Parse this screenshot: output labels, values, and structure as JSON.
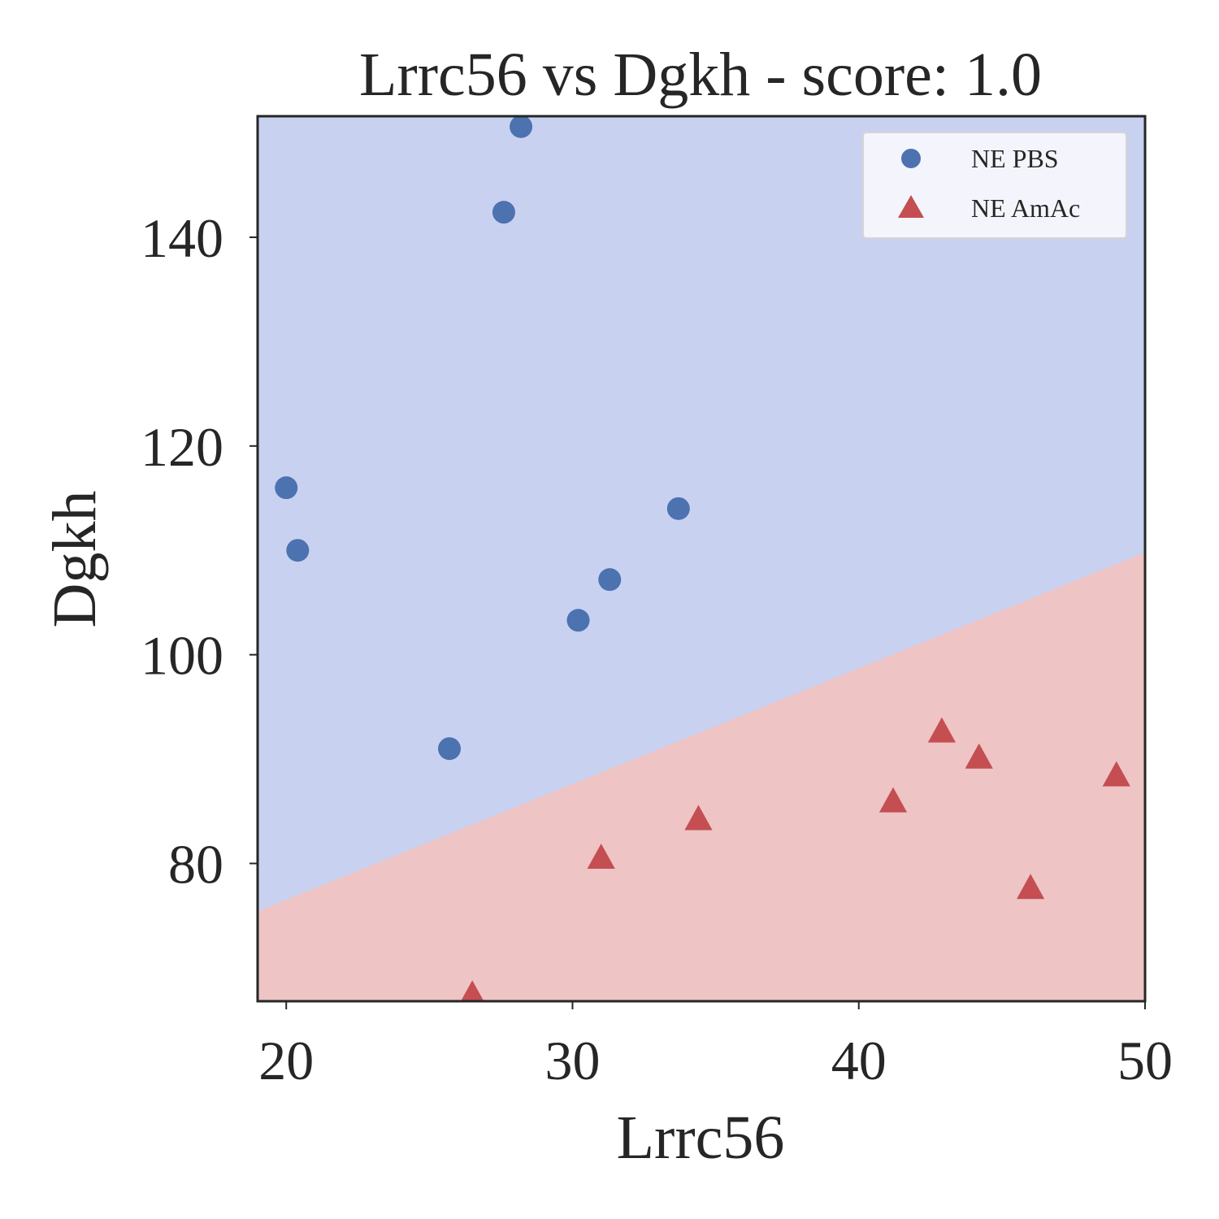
{
  "chart_data": {
    "type": "scatter",
    "title": "Lrrc56 vs Dgkh - score: 1.0",
    "xlabel": "Lrrc56",
    "ylabel": "Dgkh",
    "xlim": [
      19.0,
      50.0
    ],
    "ylim": [
      66.8,
      151.6
    ],
    "xticks": [
      20,
      30,
      40,
      50
    ],
    "xtick_labels": [
      "20",
      "30",
      "40",
      "50"
    ],
    "yticks": [
      80,
      100,
      120,
      140
    ],
    "ytick_labels": [
      "80",
      "100",
      "120",
      "140"
    ],
    "grid": false,
    "legend_position": "top-right",
    "decision_boundary": {
      "x": [
        19.0,
        50.0
      ],
      "y": [
        75.4,
        109.8
      ]
    },
    "regions": {
      "above_color": "#c9d1f1",
      "below_color": "#eec4c4"
    },
    "series": [
      {
        "name": "NE PBS",
        "marker": "circle",
        "color": "#4c72b0",
        "x": [
          28.2,
          27.6,
          20.0,
          20.4,
          33.7,
          31.3,
          30.2,
          25.7
        ],
        "y": [
          150.6,
          142.4,
          116.0,
          110.0,
          114.0,
          107.2,
          103.3,
          91.0
        ]
      },
      {
        "name": "NE AmAc",
        "marker": "triangle",
        "color": "#c44e52",
        "x": [
          42.9,
          44.2,
          49.0,
          41.2,
          34.4,
          31.0,
          46.0,
          26.5
        ],
        "y": [
          92.6,
          90.1,
          88.4,
          85.9,
          84.2,
          80.5,
          77.6,
          67.4
        ]
      }
    ]
  }
}
